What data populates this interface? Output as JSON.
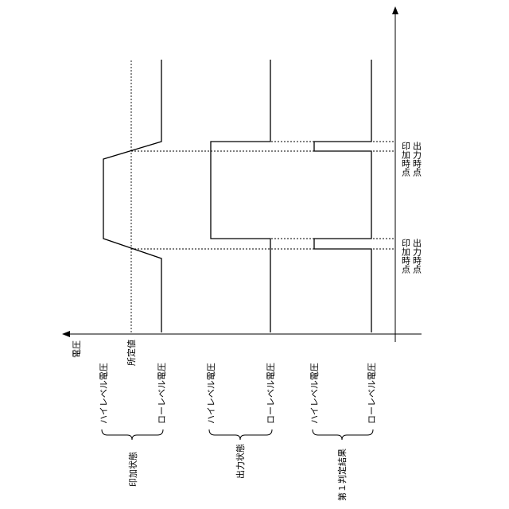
{
  "axis_label": "電圧",
  "signals": [
    {
      "name": "印加状態",
      "high": "ハイレベル電圧",
      "threshold": "所定値",
      "low": "ローレベル電圧"
    },
    {
      "name": "出力状態",
      "high": "ハイレベル電圧",
      "low": "ローレベル電圧"
    },
    {
      "name": "第１判定結果",
      "high": "ハイレベル電圧",
      "low": "ローレベル電圧"
    }
  ],
  "time_points": [
    {
      "apply": "印加時点",
      "output": "出力時点"
    },
    {
      "apply": "印加時点",
      "output": "出力時点"
    }
  ]
}
